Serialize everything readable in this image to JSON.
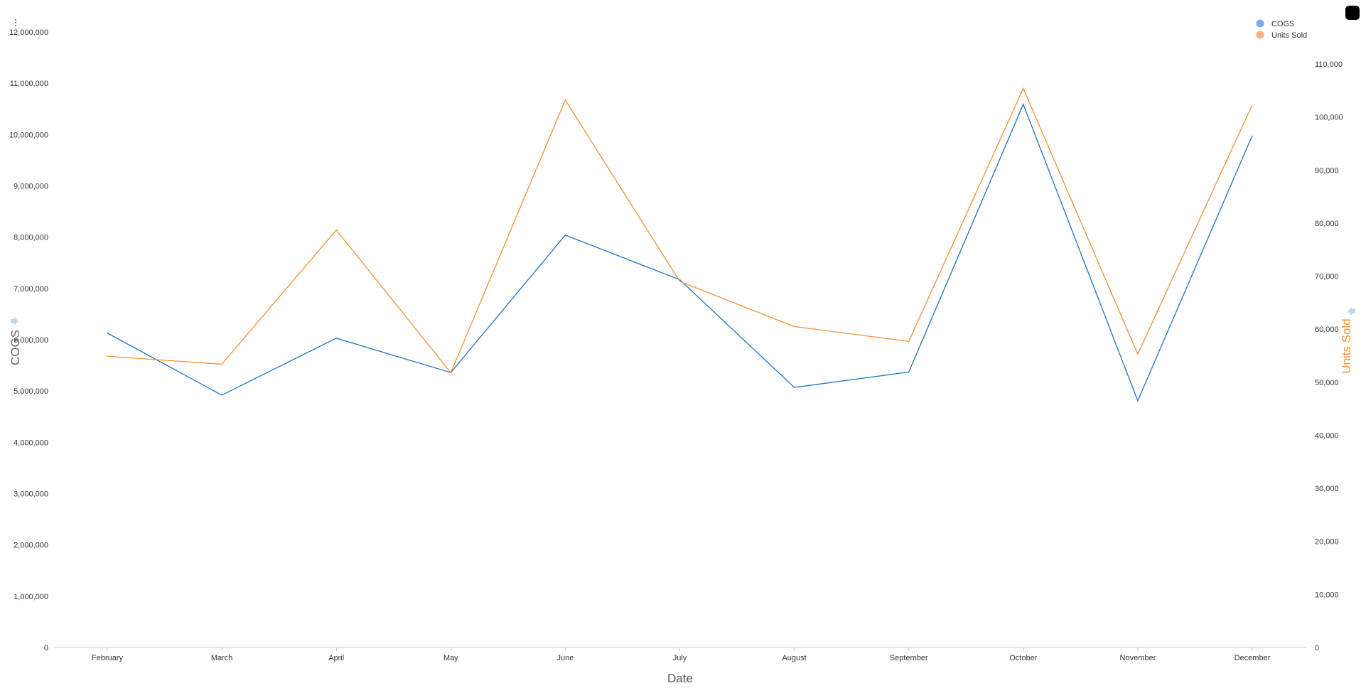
{
  "colors": {
    "cogs": "#1a73c9",
    "units": "#f58f2e",
    "legend_cogs": "#7aaae8",
    "legend_units": "#f5b27a",
    "axis_line": "#b5cbe0",
    "axis_arrow": "#c3d5e6"
  },
  "icons": {
    "menu": "kebab-menu-icon",
    "left_arrow": "arrow-right-icon",
    "right_arrow": "arrow-left-icon"
  },
  "chart_data": {
    "type": "line",
    "xlabel": "Date",
    "categories": [
      "February",
      "March",
      "April",
      "May",
      "June",
      "July",
      "August",
      "September",
      "October",
      "November",
      "December"
    ],
    "y_left": {
      "label": "COGS",
      "ylim": [
        0,
        12000000
      ],
      "ticks": [
        "0",
        "1,000,000",
        "2,000,000",
        "3,000,000",
        "4,000,000",
        "5,000,000",
        "6,000,000",
        "7,000,000",
        "8,000,000",
        "9,000,000",
        "10,000,000",
        "11,000,000",
        "12,000,000"
      ]
    },
    "y_right": {
      "label": "Units Sold",
      "ylim": [
        0,
        110000
      ],
      "ticks": [
        "0",
        "10,000",
        "20,000",
        "30,000",
        "40,000",
        "50,000",
        "60,000",
        "70,000",
        "80,000",
        "90,000",
        "100,000",
        "110,000"
      ]
    },
    "series": [
      {
        "name": "COGS",
        "axis": "left",
        "values": [
          6130000,
          4920000,
          6030000,
          5360000,
          8040000,
          7170000,
          5070000,
          5370000,
          10590000,
          4810000,
          9980000
        ]
      },
      {
        "name": "Units Sold",
        "axis": "right",
        "values": [
          54900,
          53400,
          78700,
          51800,
          103200,
          69000,
          60500,
          57700,
          105400,
          55300,
          102300
        ]
      }
    ],
    "legend": "top-right",
    "grid": false
  }
}
